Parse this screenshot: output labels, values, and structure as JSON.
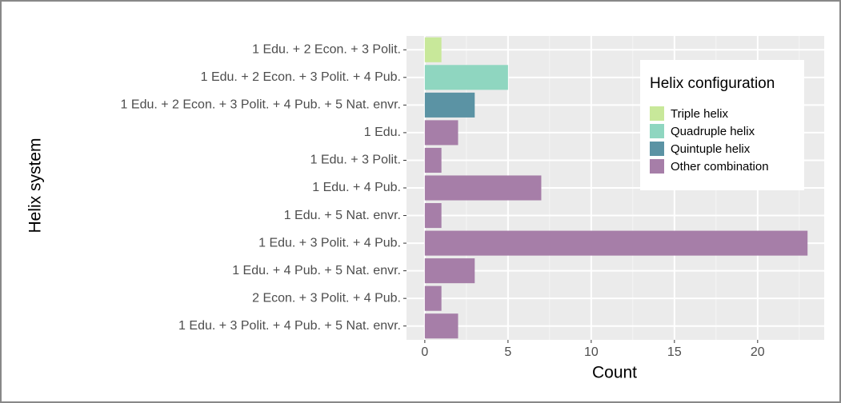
{
  "chart_data": {
    "type": "barh",
    "x_label": "Count",
    "y_label": "Helix system",
    "legend_title": "Helix configuration",
    "legend_position": "top-right",
    "grid": true,
    "categories": [
      "1 Edu. + 2 Econ. + 3 Polit.",
      "1 Edu. + 2 Econ. + 3 Polit. + 4 Pub.",
      "1 Edu. + 2 Econ. + 3 Polit. + 4 Pub. + 5 Nat. envr.",
      "1 Edu.",
      "1 Edu. + 3 Polit.",
      "1 Edu. + 4 Pub.",
      "1 Edu. + 5 Nat. envr.",
      "1 Edu. + 3 Polit. + 4 Pub.",
      "1 Edu. + 4 Pub. + 5 Nat. envr.",
      "2 Econ. + 3 Polit. + 4 Pub.",
      "1 Edu. + 3 Polit. + 4 Pub. + 5 Nat. envr."
    ],
    "series": [
      {
        "name": "Triple helix",
        "color": "#c8e89a",
        "values": [
          1,
          null,
          null,
          null,
          null,
          null,
          null,
          null,
          null,
          null,
          null
        ]
      },
      {
        "name": "Quadruple helix",
        "color": "#8fd6c0",
        "values": [
          null,
          5,
          null,
          null,
          null,
          null,
          null,
          null,
          null,
          null,
          null
        ]
      },
      {
        "name": "Quintuple helix",
        "color": "#5b93a4",
        "values": [
          null,
          null,
          3,
          null,
          null,
          null,
          null,
          null,
          null,
          null,
          null
        ]
      },
      {
        "name": "Other combination",
        "color": "#a67ea8",
        "values": [
          null,
          null,
          null,
          2,
          1,
          7,
          1,
          23,
          3,
          1,
          2
        ]
      }
    ],
    "xlim": [
      -1.1,
      24
    ],
    "xticks": [
      0,
      5,
      10,
      15,
      20
    ],
    "minor_xticks": [
      2.5,
      7.5,
      12.5,
      17.5,
      22.5
    ]
  }
}
